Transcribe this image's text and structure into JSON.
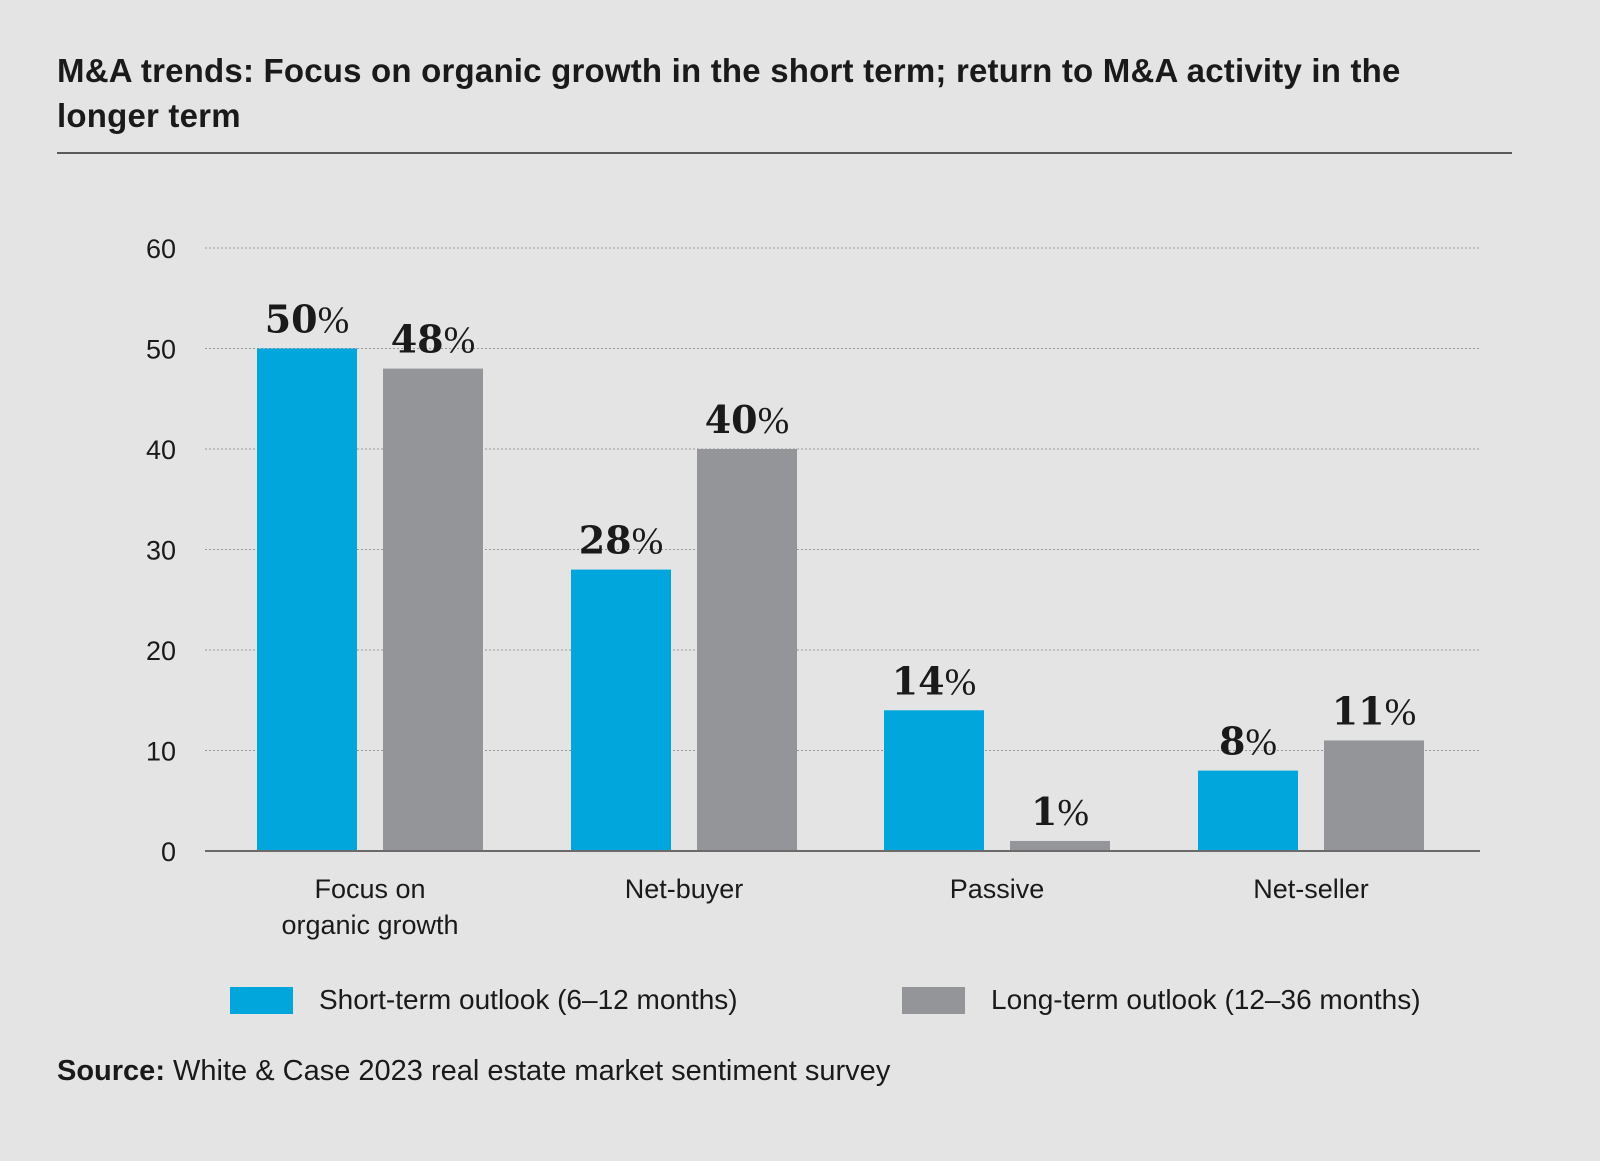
{
  "title": "M&A trends: Focus on organic growth in the short term; return to M&A activity in the longer term",
  "source": {
    "label": "Source:",
    "text": "White & Case 2023 real estate market sentiment survey"
  },
  "chart_data": {
    "type": "bar",
    "title": "M&A trends: Focus on organic growth in the short term; return to M&A activity in the longer term",
    "xlabel": "",
    "ylabel": "",
    "ylim": [
      0,
      60
    ],
    "yticks": [
      "0",
      "10",
      "20",
      "30",
      "40",
      "50",
      "60"
    ],
    "grid": true,
    "legend_position": "bottom",
    "categories": [
      [
        "Focus on",
        "organic growth"
      ],
      [
        "Net-buyer"
      ],
      [
        "Passive"
      ],
      [
        "Net-seller"
      ]
    ],
    "series": [
      {
        "name": "Short-term outlook (6–12 months)",
        "color": "#00a6dc",
        "values": [
          50,
          28,
          14,
          8
        ],
        "labels": [
          "50",
          "28",
          "14",
          "8"
        ]
      },
      {
        "name": "Long-term outlook (12–36 months)",
        "color": "#939598",
        "values": [
          48,
          40,
          1,
          11
        ],
        "labels": [
          "48",
          "40",
          "1",
          "11"
        ]
      }
    ],
    "label_suffix": "%"
  }
}
